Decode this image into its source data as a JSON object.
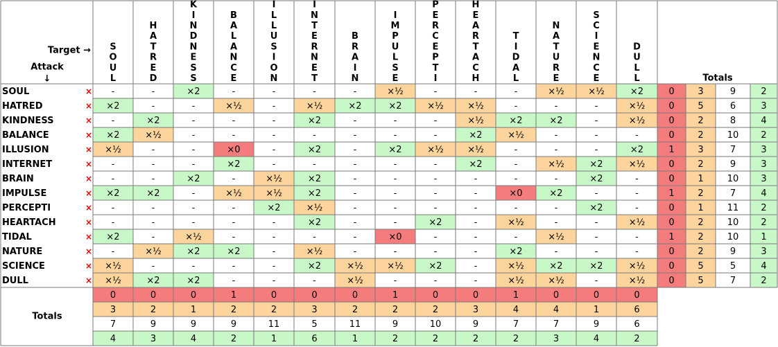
{
  "corner": {
    "target_label": "Target →",
    "attack_label": "Attack",
    "attack_arrow": "↓"
  },
  "types": [
    "SOUL",
    "HATRED",
    "KINDNESS",
    "BALANCE",
    "ILLUSION",
    "INTERNET",
    "BRAIN",
    "IMPULSE",
    "PERCEPTI",
    "HEARTACH",
    "TIDAL",
    "NATURE",
    "SCIENCE",
    "DULL"
  ],
  "x_icon": "×",
  "totals_label": "Totals",
  "legend_symbols": {
    "zero": "×0",
    "half": "×½",
    "double": "×2",
    "normal": "-"
  },
  "colors": {
    "zero": "#f47c7c",
    "half": "#fcd49c",
    "double": "#c8f7c8",
    "normal": "#ffffff",
    "grid": "#7a7a7a",
    "x_icon": "#e00000"
  },
  "chart_data": {
    "type": "table",
    "rows": [
      {
        "attack": "SOUL",
        "cells": [
          "-",
          "-",
          "×2",
          "-",
          "-",
          "-",
          "-",
          "×½",
          "-",
          "-",
          "-",
          "×½",
          "×½",
          "×2"
        ],
        "totals": [
          "0",
          "3",
          "9",
          "2"
        ]
      },
      {
        "attack": "HATRED",
        "cells": [
          "×2",
          "-",
          "-",
          "×½",
          "-",
          "×½",
          "×2",
          "×2",
          "×½",
          "×½",
          "-",
          "-",
          "-",
          "×½"
        ],
        "totals": [
          "0",
          "5",
          "6",
          "3"
        ]
      },
      {
        "attack": "KINDNESS",
        "cells": [
          "-",
          "×2",
          "-",
          "-",
          "-",
          "×2",
          "-",
          "-",
          "-",
          "×½",
          "×2",
          "×2",
          "-",
          "×½"
        ],
        "totals": [
          "0",
          "2",
          "8",
          "4"
        ]
      },
      {
        "attack": "BALANCE",
        "cells": [
          "×2",
          "×½",
          "-",
          "-",
          "-",
          "-",
          "-",
          "-",
          "-",
          "×2",
          "×½",
          "-",
          "-",
          "-"
        ],
        "totals": [
          "0",
          "2",
          "10",
          "2"
        ]
      },
      {
        "attack": "ILLUSION",
        "cells": [
          "×½",
          "-",
          "-",
          "×0",
          "-",
          "×2",
          "-",
          "×2",
          "×½",
          "×½",
          "-",
          "-",
          "-",
          "×2"
        ],
        "totals": [
          "1",
          "3",
          "7",
          "3"
        ]
      },
      {
        "attack": "INTERNET",
        "cells": [
          "-",
          "-",
          "-",
          "×2",
          "-",
          "-",
          "-",
          "-",
          "-",
          "×2",
          "-",
          "×½",
          "×2",
          "×½"
        ],
        "totals": [
          "0",
          "2",
          "9",
          "3"
        ]
      },
      {
        "attack": "BRAIN",
        "cells": [
          "-",
          "-",
          "×2",
          "-",
          "×½",
          "×2",
          "-",
          "-",
          "-",
          "-",
          "-",
          "-",
          "×2",
          "-"
        ],
        "totals": [
          "0",
          "1",
          "10",
          "3"
        ]
      },
      {
        "attack": "IMPULSE",
        "cells": [
          "×2",
          "×2",
          "-",
          "×½",
          "×½",
          "×2",
          "-",
          "-",
          "-",
          "-",
          "×0",
          "×2",
          "-",
          "-"
        ],
        "totals": [
          "1",
          "2",
          "7",
          "4"
        ]
      },
      {
        "attack": "PERCEPTI",
        "cells": [
          "-",
          "-",
          "-",
          "-",
          "×2",
          "×½",
          "-",
          "-",
          "-",
          "-",
          "-",
          "-",
          "×2",
          "-"
        ],
        "totals": [
          "0",
          "1",
          "11",
          "2"
        ]
      },
      {
        "attack": "HEARTACH",
        "cells": [
          "-",
          "-",
          "-",
          "-",
          "-",
          "×2",
          "-",
          "-",
          "×2",
          "-",
          "×½",
          "-",
          "-",
          "×½"
        ],
        "totals": [
          "0",
          "2",
          "10",
          "2"
        ]
      },
      {
        "attack": "TIDAL",
        "cells": [
          "×2",
          "-",
          "×½",
          "-",
          "-",
          "-",
          "-",
          "×0",
          "-",
          "-",
          "-",
          "×½",
          "-",
          "-"
        ],
        "totals": [
          "1",
          "2",
          "10",
          "1"
        ]
      },
      {
        "attack": "NATURE",
        "cells": [
          "-",
          "×½",
          "×2",
          "×2",
          "-",
          "×½",
          "-",
          "-",
          "-",
          "-",
          "×2",
          "-",
          "-",
          "-"
        ],
        "totals": [
          "0",
          "2",
          "9",
          "3"
        ]
      },
      {
        "attack": "SCIENCE",
        "cells": [
          "×½",
          "-",
          "-",
          "-",
          "-",
          "×2",
          "×½",
          "×½",
          "×2",
          "-",
          "×½",
          "×2",
          "×2",
          "×½"
        ],
        "totals": [
          "0",
          "5",
          "5",
          "4"
        ]
      },
      {
        "attack": "DULL",
        "cells": [
          "×½",
          "×2",
          "×2",
          "-",
          "-",
          "-",
          "×½",
          "-",
          "-",
          "-",
          "×½",
          "×½",
          "-",
          "×½"
        ],
        "totals": [
          "0",
          "5",
          "7",
          "2"
        ]
      }
    ],
    "column_totals": [
      [
        "0",
        "0",
        "0",
        "1",
        "0",
        "0",
        "0",
        "1",
        "0",
        "0",
        "1",
        "0",
        "0",
        "0"
      ],
      [
        "3",
        "2",
        "1",
        "2",
        "2",
        "3",
        "2",
        "2",
        "2",
        "3",
        "4",
        "4",
        "1",
        "6"
      ],
      [
        "7",
        "9",
        "9",
        "9",
        "11",
        "5",
        "11",
        "9",
        "10",
        "9",
        "7",
        "7",
        "9",
        "6"
      ],
      [
        "4",
        "3",
        "4",
        "2",
        "1",
        "6",
        "1",
        "2",
        "2",
        "2",
        "2",
        "3",
        "4",
        "2"
      ]
    ],
    "totals_order": [
      "zero",
      "half",
      "normal",
      "double"
    ]
  }
}
